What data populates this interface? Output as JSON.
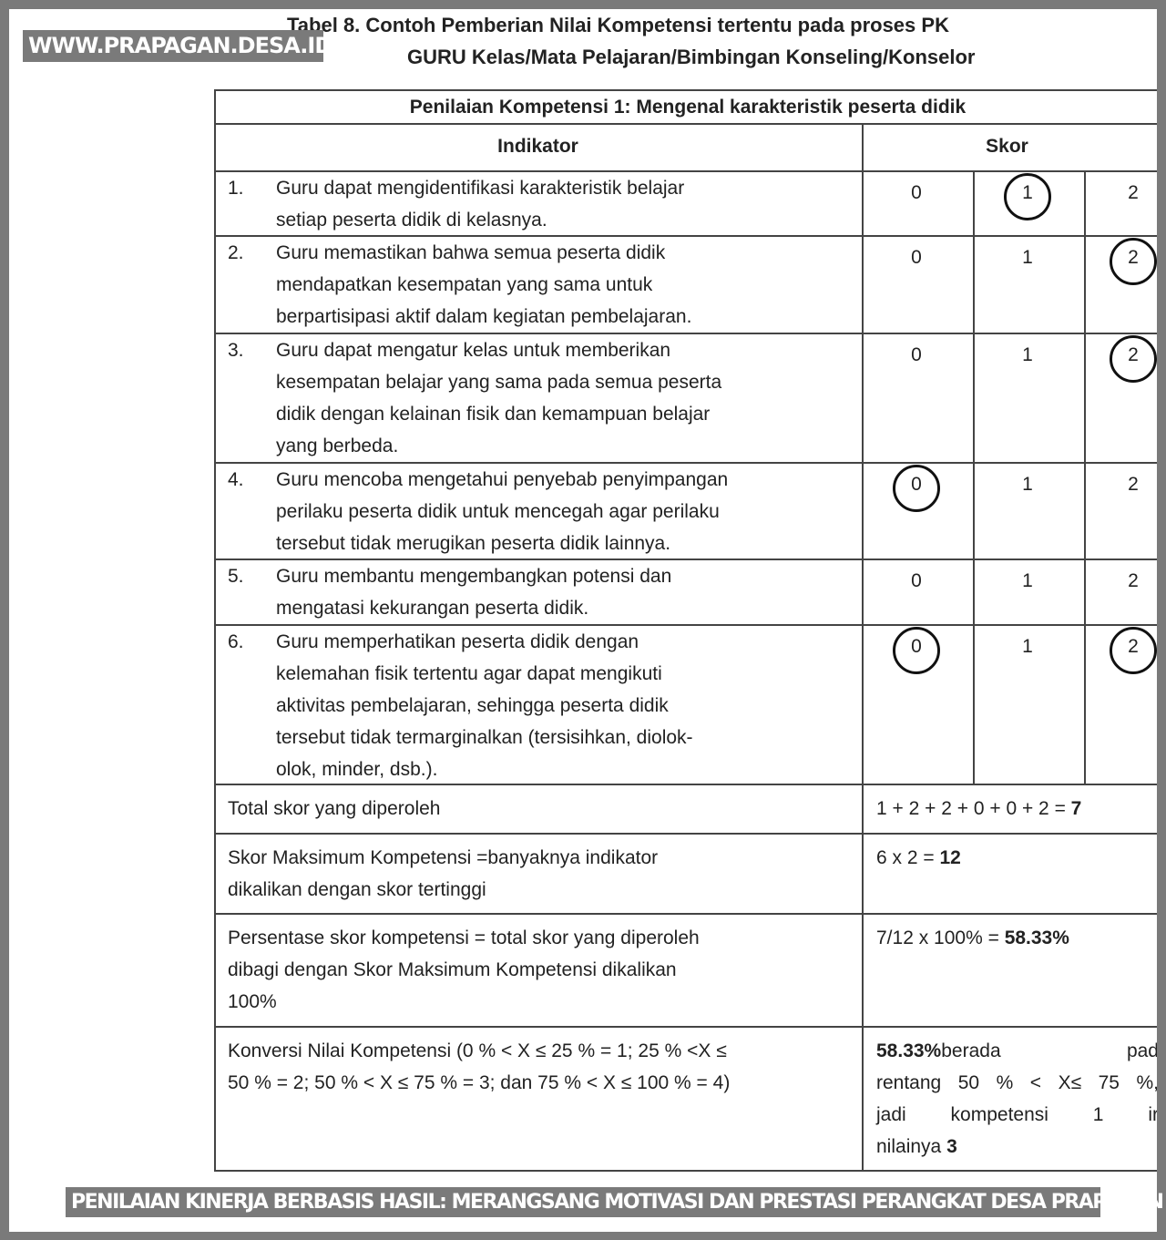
{
  "watermark_top": "WWW.PRAPAGAN.DESA.ID",
  "watermark_bottom": "PENILAIAN KINERJA BERBASIS HASIL: MERANGSANG MOTIVASI DAN PRESTASI PERANGKAT DESA PRAPAGAN",
  "title_line1": "Tabel 8. Contoh Pemberian Nilai Kompetensi tertentu pada proses PK",
  "title_line2": "GURU Kelas/Mata Pelajaran/Bimbingan Konseling/Konselor",
  "table": {
    "heading": "Penilaian Kompetensi 1: Mengenal karakteristik peserta didik",
    "col_indikator": "Indikator",
    "col_skor": "Skor",
    "score_options": [
      "0",
      "1",
      "2"
    ],
    "rows": [
      {
        "no": "1.",
        "lines": [
          "Guru dapat mengidentifikasi karakteristik belajar",
          "setiap peserta didik di kelasnya."
        ],
        "circled": [
          "1"
        ]
      },
      {
        "no": "2.",
        "lines": [
          "Guru memastikan bahwa semua peserta didik",
          "mendapatkan kesempatan yang sama untuk",
          "berpartisipasi aktif dalam kegiatan pembelajaran."
        ],
        "circled": [
          "2"
        ]
      },
      {
        "no": "3.",
        "lines": [
          "Guru dapat mengatur kelas untuk memberikan",
          "kesempatan belajar yang sama pada semua peserta",
          "didik dengan kelainan fisik dan kemampuan belajar",
          "yang berbeda."
        ],
        "circled": [
          "2"
        ]
      },
      {
        "no": "4.",
        "lines": [
          "Guru mencoba mengetahui penyebab penyimpangan",
          "perilaku peserta didik untuk mencegah agar perilaku",
          "tersebut tidak merugikan peserta didik lainnya."
        ],
        "circled": [
          "0"
        ]
      },
      {
        "no": "5.",
        "lines": [
          "Guru membantu mengembangkan potensi dan",
          "mengatasi kekurangan peserta didik."
        ],
        "circled": []
      },
      {
        "no": "6.",
        "lines": [
          "Guru memperhatikan peserta didik dengan",
          "kelemahan fisik tertentu agar dapat mengikuti",
          "aktivitas pembelajaran, sehingga peserta didik",
          "tersebut tidak termarginalkan (tersisihkan, diolok-",
          "olok, minder, dsb.)."
        ],
        "circled": [
          "0",
          "2"
        ]
      }
    ],
    "total_label": "Total skor yang diperoleh",
    "total_value_expr": "1 + 2 + 2 + 0 + 0 + 2 = ",
    "total_value": "7",
    "max_label_lines": [
      "Skor Maksimum Kompetensi =banyaknya indikator",
      "dikalikan dengan skor tertinggi"
    ],
    "max_value_expr": "6 x 2 = ",
    "max_value": "12",
    "pct_label_lines": [
      "Persentase skor kompetensi = total skor yang diperoleh",
      "dibagi dengan Skor Maksimum Kompetensi dikalikan",
      "100%"
    ],
    "pct_value_expr": "7/12 x 100% = ",
    "pct_value": "58.33%",
    "conv_label_lines": [
      "Konversi Nilai Kompetensi (0 % < X  ≤ 25 % = 1; 25 % <X ≤",
      "50 % = 2; 50 % < X ≤ 75 % = 3; dan 75 % < X ≤ 100 % = 4)"
    ],
    "conv_result_bold": "58.33%",
    "conv_result_line1_rest": "berada pad",
    "conv_result_line2": "rentang 50 % < X≤ 75 %,",
    "conv_result_line3": "jadi kompetensi 1 ir",
    "conv_result_line4": "nilainya ",
    "conv_result_value": "3"
  }
}
